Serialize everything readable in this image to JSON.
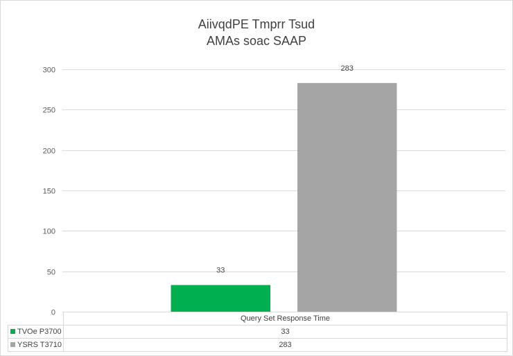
{
  "chart_data": {
    "type": "bar",
    "title": [
      "AiivqdPE Tmprr Tsud",
      "AMAs soac SAAP"
    ],
    "categories": [
      "Query Set Response Time"
    ],
    "series": [
      {
        "name": "TVOe P3700",
        "values": [
          33
        ],
        "color": "#00b050"
      },
      {
        "name": "YSRS T3710",
        "values": [
          283
        ],
        "color": "#a5a5a5"
      }
    ],
    "ylim": [
      0,
      300
    ],
    "yticks": [
      0,
      50,
      100,
      150,
      200,
      250,
      300
    ],
    "grid": true,
    "legend": "data-table",
    "data_labels": true
  },
  "colors": {
    "gridline": "#d9d9d9",
    "text": "#595959"
  }
}
